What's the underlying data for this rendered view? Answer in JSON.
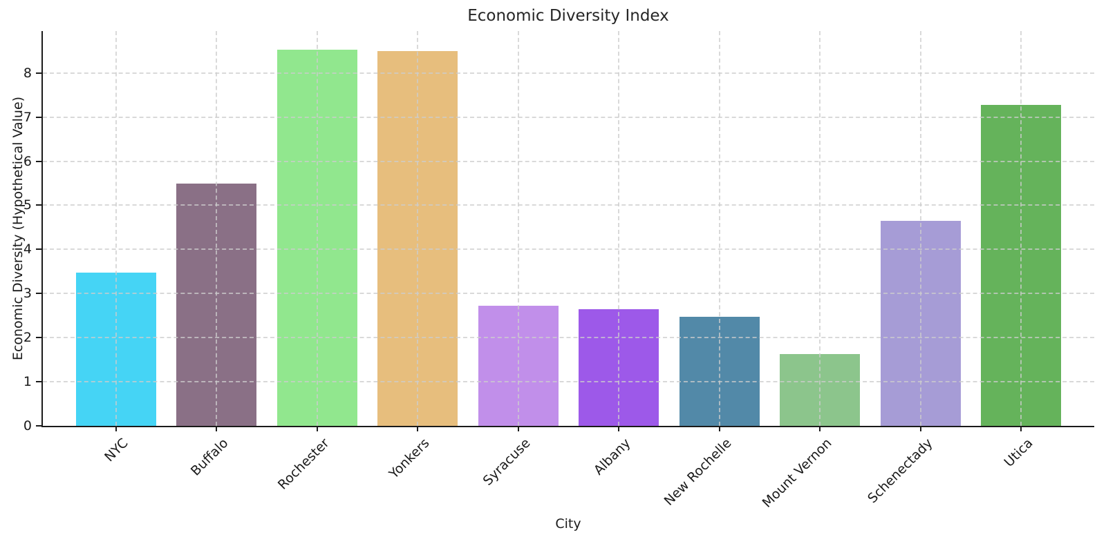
{
  "chart_data": {
    "type": "bar",
    "title": "Economic Diversity Index",
    "xlabel": "City",
    "ylabel": "Economic Diversity (Hypothetical Value)",
    "categories": [
      "NYC",
      "Buffalo",
      "Rochester",
      "Yonkers",
      "Syracuse",
      "Albany",
      "New Rochelle",
      "Mount Vernon",
      "Schenectady",
      "Utica"
    ],
    "values": [
      3.47,
      5.5,
      8.53,
      8.5,
      2.73,
      2.64,
      2.47,
      1.63,
      4.64,
      7.28
    ],
    "bar_colors": [
      "#45d4f5",
      "#8a7086",
      "#91e78e",
      "#e7be7d",
      "#c18fea",
      "#9d59e9",
      "#5289a8",
      "#8cc58c",
      "#a69cd6",
      "#65b35b"
    ],
    "yticks": [
      0,
      1,
      2,
      3,
      4,
      5,
      6,
      7,
      8
    ],
    "ylim": [
      0,
      8.95
    ],
    "grid": true,
    "grid_style": "dashed",
    "grid_color": "#cccccc",
    "axis_color": "#1a1a1a",
    "title_color": "#262626",
    "legend": "none"
  }
}
